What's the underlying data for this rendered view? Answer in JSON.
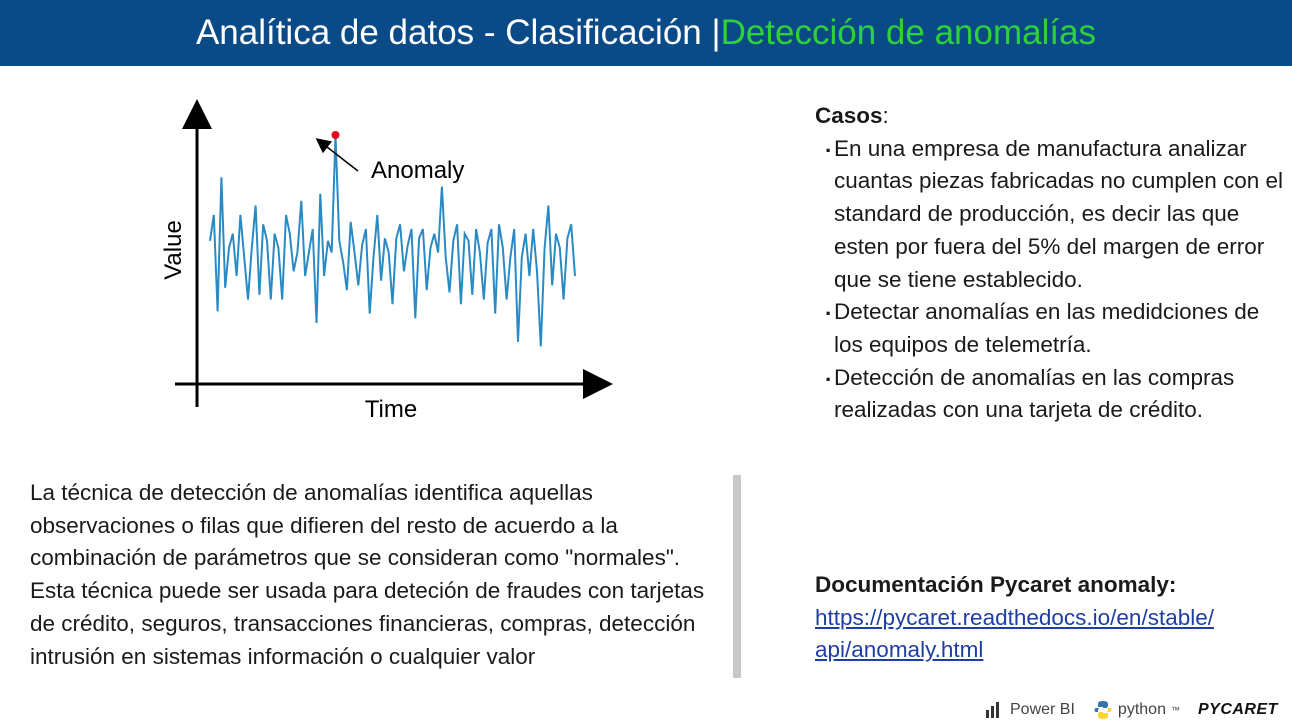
{
  "header": {
    "title_main": "Analítica de datos - Clasificación | ",
    "title_accent": "Detección de anomalías"
  },
  "figure": {
    "annotation": "Anomaly",
    "xlabel": "Time",
    "ylabel": "Value"
  },
  "chart_data": {
    "type": "line",
    "xlabel": "Time",
    "ylabel": "Value",
    "annotation": "Anomaly",
    "values": [
      0.55,
      0.66,
      0.25,
      0.82,
      0.35,
      0.52,
      0.58,
      0.4,
      0.66,
      0.48,
      0.3,
      0.52,
      0.7,
      0.32,
      0.62,
      0.55,
      0.3,
      0.58,
      0.52,
      0.3,
      0.66,
      0.58,
      0.42,
      0.5,
      0.72,
      0.4,
      0.5,
      0.6,
      0.2,
      0.75,
      0.4,
      0.55,
      0.5,
      1.0,
      0.55,
      0.46,
      0.34,
      0.63,
      0.5,
      0.36,
      0.53,
      0.6,
      0.24,
      0.48,
      0.66,
      0.38,
      0.56,
      0.5,
      0.28,
      0.56,
      0.62,
      0.42,
      0.53,
      0.6,
      0.22,
      0.56,
      0.6,
      0.34,
      0.52,
      0.58,
      0.5,
      0.78,
      0.48,
      0.33,
      0.55,
      0.62,
      0.28,
      0.58,
      0.55,
      0.32,
      0.6,
      0.5,
      0.3,
      0.54,
      0.6,
      0.24,
      0.62,
      0.52,
      0.3,
      0.48,
      0.6,
      0.12,
      0.48,
      0.58,
      0.4,
      0.6,
      0.42,
      0.1,
      0.52,
      0.7,
      0.36,
      0.58,
      0.52,
      0.3,
      0.56,
      0.62,
      0.4
    ],
    "anomaly_index": 33,
    "anomaly_color": "#e8001c",
    "line_color": "#2a8ac4"
  },
  "casos": {
    "title": "Casos",
    "colon": ":",
    "items": [
      "En una empresa de manufactura analizar cuantas piezas fabricadas no cumplen con el standard de producción, es decir las que esten por fuera del 5% del margen de error que se tiene establecido.",
      "Detectar anomalías en las medidciones de los equipos de telemetría.",
      "Detección de anomalías en las compras realizadas con una tarjeta de crédito."
    ]
  },
  "description": {
    "p1": "La técnica de detección de anomalías identifica aquellas observaciones o filas que difieren del resto de acuerdo a la combinación de parámetros que se consideran como \"normales\".",
    "p2": " Esta técnica puede ser usada para deteción de fraudes con tarjetas de crédito, seguros, transacciones financieras, compras, detección intrusión en sistemas información o cualquier valor"
  },
  "documentation": {
    "title": "Documentación Pycaret anomaly:",
    "link_line1": "https://pycaret.readthedocs.io/en/stable/",
    "link_line2": "api/anomaly.html"
  },
  "logos": {
    "powerbi": "Power BI",
    "python": "python",
    "python_tm": "™",
    "pycaret": "PYCARET"
  },
  "colors": {
    "header_bg": "#0a4a86",
    "header_accent": "#2fd13a",
    "link": "#1f3ea3"
  }
}
